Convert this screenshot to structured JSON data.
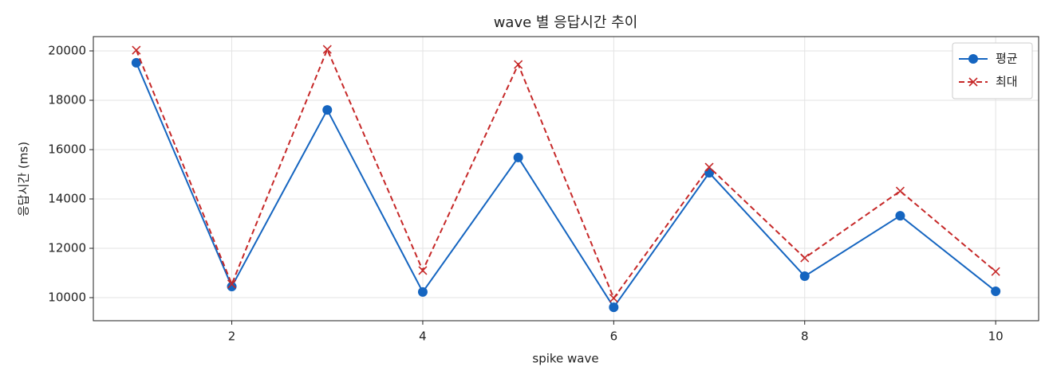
{
  "chart_data": {
    "type": "line",
    "title": "wave 별 응답시간 추이",
    "xlabel": "spike wave",
    "ylabel": "응답시간 (ms)",
    "x": [
      1,
      2,
      3,
      4,
      5,
      6,
      7,
      8,
      9,
      10
    ],
    "series": [
      {
        "name": "평균",
        "color": "#1565c0",
        "marker": "o",
        "linestyle": "solid",
        "values": [
          19520,
          10450,
          17610,
          10230,
          15680,
          9610,
          15060,
          10870,
          13320,
          10260
        ]
      },
      {
        "name": "최대",
        "color": "#c62828",
        "marker": "x",
        "linestyle": "dashed",
        "values": [
          20030,
          10550,
          20060,
          11100,
          19450,
          9980,
          15290,
          11610,
          14320,
          11060
        ]
      }
    ],
    "xlim": [
      0.55,
      10.45
    ],
    "xticks": [
      2,
      4,
      6,
      8,
      10
    ],
    "ylim": [
      9065,
      20580
    ],
    "yticks": [
      10000,
      12000,
      14000,
      16000,
      18000,
      20000
    ],
    "grid": true,
    "legend": "upper right"
  }
}
